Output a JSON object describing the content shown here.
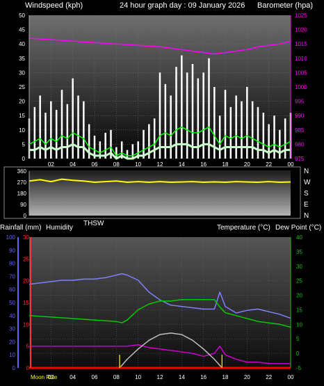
{
  "header": {
    "wind_label": "Windspeed (kph)",
    "title": "24 hour graph day : 09 January 2026",
    "baro_label": "Barometer (hpa)"
  },
  "mid_labels": {
    "thsw": "THSW",
    "rain_label": "Rainfall (mm)",
    "humidity_label": "Humidity",
    "temp_label": "Temperature (°C)",
    "dew_label": "Dew Point (°C)"
  },
  "compass": [
    "N",
    "W",
    "S",
    "E",
    "N"
  ],
  "bottom": {
    "moon_label": "Moon Rise"
  },
  "colors": {
    "gust": "#ffffff",
    "wind_avg": "#00ff00",
    "wind_low": "#c8ffc8",
    "baro": "#ff00ff",
    "direction": "#ffff00",
    "humidity": "#8080ff",
    "temperature": "#00cc00",
    "dew_point": "#cc00cc",
    "solar": "#c0c0c0",
    "rain": "#ff0000",
    "rain_axis": "#ff3333",
    "humidity_axis": "#6666ff",
    "temp_axis": "#00cc00",
    "moon_marker": "#ffff00"
  },
  "chart_data": [
    {
      "type": "line",
      "panel": "wind-barometer",
      "x_ticks": [
        "02",
        "04",
        "06",
        "08",
        "10",
        "12",
        "14",
        "16",
        "18",
        "20",
        "22",
        "00"
      ],
      "y_left": {
        "label": "Windspeed (kph)",
        "ticks": [
          0,
          5,
          10,
          15,
          20,
          25,
          30,
          35,
          40,
          45,
          50
        ],
        "range": [
          0,
          50
        ]
      },
      "y_right": {
        "label": "Barometer (hpa)",
        "ticks": [
          975,
          980,
          985,
          990,
          995,
          1000,
          1005,
          1010,
          1015,
          1020,
          1025
        ],
        "range": [
          975,
          1025
        ]
      },
      "series": [
        {
          "key": "gust",
          "x": [
            0,
            0.5,
            1,
            1.5,
            2,
            2.5,
            3,
            3.5,
            4,
            4.5,
            5,
            5.5,
            6,
            6.5,
            7,
            7.5,
            8,
            8.5,
            9,
            9.5,
            10,
            10.5,
            11,
            11.5,
            12,
            12.5,
            13,
            13.5,
            14,
            14.5,
            15,
            15.5,
            16,
            16.5,
            17,
            17.5,
            18,
            18.5,
            19,
            19.5,
            20,
            20.5,
            21,
            21.5,
            22,
            22.5,
            23,
            23.5,
            24
          ],
          "values": [
            14,
            18,
            22,
            16,
            20,
            17,
            24,
            19,
            28,
            22,
            20,
            12,
            8,
            6,
            9,
            10,
            4,
            6,
            3,
            5,
            6,
            10,
            12,
            14,
            30,
            26,
            22,
            32,
            36,
            30,
            33,
            28,
            30,
            35,
            25,
            15,
            24,
            18,
            22,
            20,
            25,
            20,
            18,
            16,
            12,
            15,
            10,
            14,
            16
          ]
        },
        {
          "key": "wind_avg",
          "x": [
            0,
            0.5,
            1,
            1.5,
            2,
            2.5,
            3,
            3.5,
            4,
            4.5,
            5,
            5.5,
            6,
            6.5,
            7,
            7.5,
            8,
            8.5,
            9,
            9.5,
            10,
            10.5,
            11,
            11.5,
            12,
            12.5,
            13,
            13.5,
            14,
            14.5,
            15,
            15.5,
            16,
            16.5,
            17,
            17.5,
            18,
            18.5,
            19,
            19.5,
            20,
            20.5,
            21,
            21.5,
            22,
            22.5,
            23,
            23.5,
            24
          ],
          "values": [
            5,
            6,
            7,
            5,
            7,
            6,
            8,
            7,
            9,
            8,
            7,
            4,
            3,
            2,
            3,
            4,
            1,
            2,
            1,
            1,
            2,
            3,
            4,
            5,
            8,
            9,
            8,
            10,
            11,
            10,
            9,
            9,
            10,
            11,
            8,
            5,
            8,
            7,
            8,
            7,
            8,
            7,
            6,
            5,
            4,
            5,
            4,
            5,
            6
          ]
        },
        {
          "key": "wind_low",
          "x": [
            0,
            0.5,
            1,
            1.5,
            2,
            2.5,
            3,
            3.5,
            4,
            4.5,
            5,
            5.5,
            6,
            6.5,
            7,
            7.5,
            8,
            8.5,
            9,
            9.5,
            10,
            10.5,
            11,
            11.5,
            12,
            12.5,
            13,
            13.5,
            14,
            14.5,
            15,
            15.5,
            16,
            16.5,
            17,
            17.5,
            18,
            18.5,
            19,
            19.5,
            20,
            20.5,
            21,
            21.5,
            22,
            22.5,
            23,
            23.5,
            24
          ],
          "values": [
            3,
            3,
            4,
            3,
            4,
            3,
            4,
            4,
            5,
            4,
            4,
            2,
            1,
            1,
            1,
            2,
            0,
            1,
            0,
            0,
            1,
            1,
            2,
            3,
            4,
            4,
            4,
            5,
            5,
            5,
            4,
            4,
            5,
            5,
            4,
            3,
            4,
            4,
            4,
            4,
            4,
            4,
            3,
            3,
            2,
            3,
            2,
            3,
            3
          ]
        },
        {
          "key": "baro",
          "x": [
            0,
            2,
            4,
            6,
            8,
            10,
            12,
            14,
            15,
            16,
            17,
            18,
            19,
            20,
            21,
            22,
            23,
            24
          ],
          "values": [
            1017,
            1016.5,
            1016,
            1015.5,
            1015,
            1014.5,
            1014,
            1013,
            1012.5,
            1012,
            1011.5,
            1012,
            1012.5,
            1013,
            1014,
            1014.5,
            1015,
            1016
          ]
        }
      ]
    },
    {
      "type": "line",
      "panel": "wind-direction",
      "y_ticks": [
        0,
        90,
        180,
        270,
        360
      ],
      "range": [
        0,
        360
      ],
      "series": [
        {
          "key": "direction",
          "x": [
            0,
            1,
            2,
            3,
            4,
            5,
            6,
            7,
            8,
            9,
            10,
            11,
            12,
            13,
            14,
            15,
            16,
            17,
            18,
            19,
            20,
            21,
            22,
            23,
            24
          ],
          "values": [
            280,
            290,
            275,
            295,
            285,
            280,
            270,
            275,
            280,
            270,
            275,
            270,
            275,
            270,
            272,
            275,
            270,
            273,
            270,
            275,
            272,
            270,
            275,
            270,
            272
          ]
        }
      ]
    },
    {
      "type": "line",
      "panel": "temperature-humidity",
      "x_ticks": [
        "02",
        "04",
        "06",
        "08",
        "10",
        "12",
        "14",
        "16",
        "18",
        "20",
        "22",
        "00"
      ],
      "y_humidity": {
        "label": "Humidity",
        "ticks": [
          0,
          10,
          20,
          30,
          40,
          50,
          60,
          70,
          80,
          90,
          100
        ],
        "range": [
          0,
          100
        ]
      },
      "y_rain": {
        "label": "Rainfall (mm)",
        "ticks": [
          0,
          5,
          10,
          15,
          20,
          25,
          30
        ],
        "range": [
          0,
          30
        ]
      },
      "y_temp": {
        "label": "Temperature (°C)",
        "ticks": [
          -5,
          0,
          5,
          10,
          15,
          20,
          25,
          30,
          35,
          40
        ],
        "range": [
          -5,
          40
        ]
      },
      "series": [
        {
          "key": "humidity",
          "x": [
            0,
            1,
            2,
            3,
            4,
            5,
            6,
            7,
            8,
            8.5,
            9,
            10,
            11,
            12,
            13,
            14,
            15,
            16,
            17,
            17.5,
            18,
            19,
            20,
            21,
            22,
            23,
            24
          ],
          "values": [
            64,
            65,
            66,
            67,
            67,
            68,
            68,
            69,
            71,
            72,
            71,
            67,
            58,
            52,
            48,
            47,
            46,
            45,
            45,
            58,
            47,
            42,
            44,
            45,
            43,
            41,
            38
          ]
        },
        {
          "key": "temperature",
          "x": [
            0,
            2,
            4,
            6,
            8,
            8.5,
            9,
            10,
            11,
            12,
            13,
            14,
            15,
            16,
            17,
            17.5,
            18,
            19,
            20,
            21,
            22,
            23,
            24
          ],
          "values": [
            13,
            12.5,
            12,
            11.5,
            11,
            10.5,
            11.5,
            15,
            17,
            18,
            18,
            18.5,
            18.5,
            18.5,
            18.5,
            16,
            14,
            13,
            12,
            11,
            10.5,
            10,
            9
          ]
        },
        {
          "key": "dew_point",
          "x": [
            0,
            2,
            4,
            6,
            8,
            9,
            10,
            11,
            12,
            13,
            14,
            15,
            16,
            17,
            17.5,
            18,
            19,
            20,
            21,
            22,
            23,
            24
          ],
          "values": [
            2.5,
            2.5,
            2.5,
            2.5,
            2.5,
            2.5,
            3,
            2,
            1.5,
            1,
            0.5,
            0,
            -1,
            0,
            2.5,
            -0.5,
            -2,
            -3,
            -3,
            -3.5,
            -3.5,
            -3.5
          ]
        },
        {
          "key": "solar",
          "x": [
            8.3,
            9,
            10,
            11,
            12,
            13,
            14,
            15,
            16,
            17,
            17.7
          ],
          "values": [
            -5,
            -2,
            1.5,
            4.5,
            6.5,
            7,
            6.5,
            4.5,
            1.5,
            -2,
            -5
          ]
        },
        {
          "key": "rain",
          "x": [
            0,
            24
          ],
          "values": [
            0,
            0
          ]
        }
      ],
      "markers": [
        {
          "key": "moon-rise",
          "x": 8.3
        },
        {
          "key": "moon-set",
          "x": 17.7
        }
      ]
    }
  ]
}
